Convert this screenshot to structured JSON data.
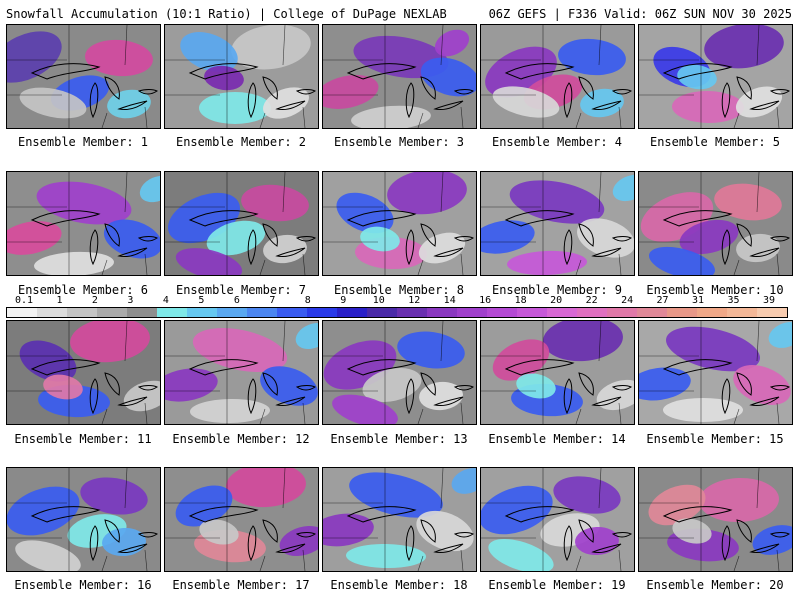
{
  "header": {
    "left_title": "Snowfall Accumulation (10:1 Ratio) | College of DuPage NEXLAB",
    "right_title": "06Z GEFS | F336 Valid: 06Z SUN NOV 30 2025"
  },
  "legend": {
    "labels": [
      "0.1",
      "1",
      "2",
      "3",
      "4",
      "5",
      "6",
      "7",
      "8",
      "9",
      "10",
      "12",
      "14",
      "16",
      "18",
      "20",
      "22",
      "24",
      "27",
      "31",
      "35",
      "39"
    ],
    "colors": [
      "#f2f2f2",
      "#dcdcdc",
      "#c4c4c4",
      "#aaaaaa",
      "#8e8e8e",
      "#7fe8e8",
      "#66c8f0",
      "#5aa8f0",
      "#4c86f0",
      "#3a5cf0",
      "#2a3ae8",
      "#2a20c8",
      "#4a2aa8",
      "#6a30b0",
      "#8a38c0",
      "#a040cc",
      "#b44ad4",
      "#c658d8",
      "#d868d4",
      "#e070c0",
      "#e078a8",
      "#e08898",
      "#e89888",
      "#f0a888",
      "#f4b898",
      "#f8ccb0"
    ]
  },
  "members": [
    {
      "label": "Ensemble Member: 1",
      "base": "#8a8a8a",
      "blobs": [
        {
          "c": "#5b3fae",
          "d": 1
        },
        {
          "c": "#d24aa0",
          "d": 1
        },
        {
          "c": "#3a5cf0",
          "d": 0
        },
        {
          "c": "#c4c4c4",
          "d": 1
        },
        {
          "c": "#6fd0e8",
          "d": 1
        }
      ]
    },
    {
      "label": "Ensemble Member: 2",
      "base": "#9c9c9c",
      "blobs": [
        {
          "c": "#c8c8c8",
          "d": 1
        },
        {
          "c": "#5aa8f0",
          "d": 0
        },
        {
          "c": "#7fe8e8",
          "d": 1
        },
        {
          "c": "#e0e0e0",
          "d": 1
        },
        {
          "c": "#7a2ab0",
          "d": 0
        }
      ]
    },
    {
      "label": "Ensemble Member: 3",
      "base": "#8e8e8e",
      "blobs": [
        {
          "c": "#7a3ab8",
          "d": 1
        },
        {
          "c": "#c84aa0",
          "d": 1
        },
        {
          "c": "#3a5cf0",
          "d": 0
        },
        {
          "c": "#cfcfcf",
          "d": 1
        },
        {
          "c": "#a040cc",
          "d": 0
        }
      ]
    },
    {
      "label": "Ensemble Member: 4",
      "base": "#9a9a9a",
      "blobs": [
        {
          "c": "#8a38c0",
          "d": 1
        },
        {
          "c": "#3a5cf0",
          "d": 0
        },
        {
          "c": "#d04c9c",
          "d": 1
        },
        {
          "c": "#d8d8d8",
          "d": 1
        },
        {
          "c": "#66c8f0",
          "d": 0
        }
      ]
    },
    {
      "label": "Ensemble Member: 5",
      "base": "#a4a4a4",
      "blobs": [
        {
          "c": "#6a30b0",
          "d": 1
        },
        {
          "c": "#3a3ae8",
          "d": 0
        },
        {
          "c": "#d868b8",
          "d": 1
        },
        {
          "c": "#e0e0e0",
          "d": 1
        },
        {
          "c": "#66c8f0",
          "d": 0
        }
      ]
    },
    {
      "label": "Ensemble Member: 6",
      "base": "#8e8e8e",
      "blobs": [
        {
          "c": "#a040cc",
          "d": 1
        },
        {
          "c": "#d84c9c",
          "d": 1
        },
        {
          "c": "#3a5cf0",
          "d": 0
        },
        {
          "c": "#e0e0e0",
          "d": 1
        },
        {
          "c": "#66c8f0",
          "d": 0
        }
      ]
    },
    {
      "label": "Ensemble Member: 7",
      "base": "#7c7c7c",
      "blobs": [
        {
          "c": "#3a5cf0",
          "d": 1
        },
        {
          "c": "#c84aa0",
          "d": 0
        },
        {
          "c": "#7fe8e8",
          "d": 1
        },
        {
          "c": "#8a38c0",
          "d": 1
        },
        {
          "c": "#d0d0d0",
          "d": 0
        }
      ]
    },
    {
      "label": "Ensemble Member: 8",
      "base": "#a0a0a0",
      "blobs": [
        {
          "c": "#8a38c0",
          "d": 1
        },
        {
          "c": "#3a5cf0",
          "d": 0
        },
        {
          "c": "#d868b8",
          "d": 1
        },
        {
          "c": "#dcdcdc",
          "d": 1
        },
        {
          "c": "#7fe8e8",
          "d": 0
        }
      ]
    },
    {
      "label": "Ensemble Member: 9",
      "base": "#a2a2a2",
      "blobs": [
        {
          "c": "#7a38c0",
          "d": 1
        },
        {
          "c": "#3a5cf0",
          "d": 0
        },
        {
          "c": "#d8d8d8",
          "d": 1
        },
        {
          "c": "#c658d8",
          "d": 0
        },
        {
          "c": "#66c8f0",
          "d": 1
        }
      ]
    },
    {
      "label": "Ensemble Member: 10",
      "base": "#8a8a8a",
      "blobs": [
        {
          "c": "#d868a8",
          "d": 1
        },
        {
          "c": "#e07898",
          "d": 0
        },
        {
          "c": "#8a38c0",
          "d": 1
        },
        {
          "c": "#3a5cf0",
          "d": 0
        },
        {
          "c": "#c8c8c8",
          "d": 1
        }
      ]
    },
    {
      "label": "Ensemble Member: 11",
      "base": "#7c7c7c",
      "blobs": [
        {
          "c": "#d24a9c",
          "d": 1
        },
        {
          "c": "#5a30b0",
          "d": 0
        },
        {
          "c": "#3a5cf0",
          "d": 1
        },
        {
          "c": "#c8c8c8",
          "d": 0
        },
        {
          "c": "#e078a8",
          "d": 1
        }
      ]
    },
    {
      "label": "Ensemble Member: 12",
      "base": "#9a9a9a",
      "blobs": [
        {
          "c": "#d868b8",
          "d": 1
        },
        {
          "c": "#8a38c0",
          "d": 0
        },
        {
          "c": "#3a5cf0",
          "d": 1
        },
        {
          "c": "#d4d4d4",
          "d": 0
        },
        {
          "c": "#66c8f0",
          "d": 1
        }
      ]
    },
    {
      "label": "Ensemble Member: 13",
      "base": "#8e8e8e",
      "blobs": [
        {
          "c": "#8a38c0",
          "d": 1
        },
        {
          "c": "#3a5cf0",
          "d": 0
        },
        {
          "c": "#c8c8c8",
          "d": 1
        },
        {
          "c": "#a040cc",
          "d": 0
        },
        {
          "c": "#e0e0e0",
          "d": 1
        }
      ]
    },
    {
      "label": "Ensemble Member: 14",
      "base": "#9c9c9c",
      "blobs": [
        {
          "c": "#6a30b0",
          "d": 1
        },
        {
          "c": "#d04c9c",
          "d": 0
        },
        {
          "c": "#3a5cf0",
          "d": 1
        },
        {
          "c": "#d8d8d8",
          "d": 0
        },
        {
          "c": "#7fe8e8",
          "d": 1
        }
      ]
    },
    {
      "label": "Ensemble Member: 15",
      "base": "#a8a8a8",
      "blobs": [
        {
          "c": "#7a38c0",
          "d": 1
        },
        {
          "c": "#3a5cf0",
          "d": 0
        },
        {
          "c": "#d868b8",
          "d": 1
        },
        {
          "c": "#e0e0e0",
          "d": 0
        },
        {
          "c": "#66c8f0",
          "d": 1
        }
      ]
    },
    {
      "label": "Ensemble Member: 16",
      "base": "#8a8a8a",
      "blobs": [
        {
          "c": "#3a5cf0",
          "d": 1
        },
        {
          "c": "#7a38c0",
          "d": 0
        },
        {
          "c": "#7fe8e8",
          "d": 1
        },
        {
          "c": "#d0d0d0",
          "d": 0
        },
        {
          "c": "#5aa8f0",
          "d": 1
        }
      ]
    },
    {
      "label": "Ensemble Member: 17",
      "base": "#8e8e8e",
      "blobs": [
        {
          "c": "#d24a9c",
          "d": 1
        },
        {
          "c": "#3a5cf0",
          "d": 0
        },
        {
          "c": "#e08898",
          "d": 1
        },
        {
          "c": "#8a38c0",
          "d": 0
        },
        {
          "c": "#c8c8c8",
          "d": 1
        }
      ]
    },
    {
      "label": "Ensemble Member: 18",
      "base": "#9e9e9e",
      "blobs": [
        {
          "c": "#3a5cf0",
          "d": 1
        },
        {
          "c": "#8a38c0",
          "d": 0
        },
        {
          "c": "#d8d8d8",
          "d": 1
        },
        {
          "c": "#7fe8e8",
          "d": 0
        },
        {
          "c": "#5aa8f0",
          "d": 1
        }
      ]
    },
    {
      "label": "Ensemble Member: 19",
      "base": "#a0a0a0",
      "blobs": [
        {
          "c": "#3a5cf0",
          "d": 1
        },
        {
          "c": "#7a38c0",
          "d": 0
        },
        {
          "c": "#d8d8d8",
          "d": 1
        },
        {
          "c": "#7fe8e8",
          "d": 0
        },
        {
          "c": "#a040cc",
          "d": 1
        }
      ]
    },
    {
      "label": "Ensemble Member: 20",
      "base": "#8a8a8a",
      "blobs": [
        {
          "c": "#d868a8",
          "d": 1
        },
        {
          "c": "#e08898",
          "d": 0
        },
        {
          "c": "#8a38c0",
          "d": 1
        },
        {
          "c": "#3a5cf0",
          "d": 0
        },
        {
          "c": "#c8c8c8",
          "d": 1
        }
      ]
    }
  ]
}
